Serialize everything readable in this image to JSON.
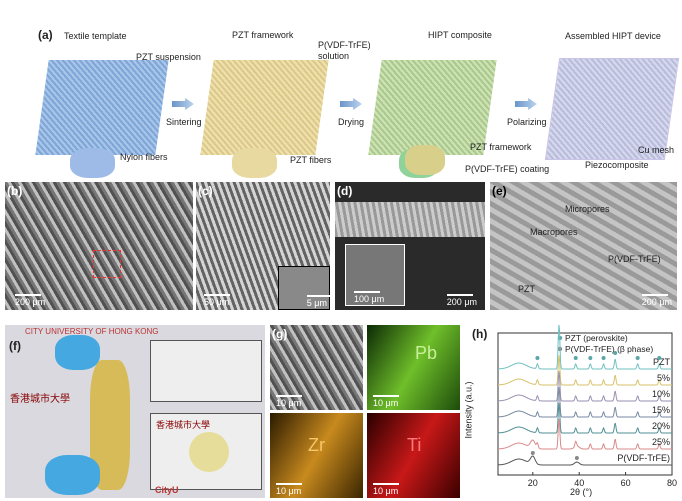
{
  "panel_a": {
    "label": "(a)",
    "steps": [
      "Textile template",
      "PZT framework",
      "HIPT composite",
      "Assembled HIPT device"
    ],
    "annotations": {
      "pzt_suspension": "PZT suspension",
      "pvdf_solution": "P(VDF-TrFE) solution",
      "nylon": "Nylon fibers",
      "pzt_fibers": "PZT fibers",
      "pzt_framework": "PZT framework",
      "coating": "P(VDF-TrFE) coating",
      "cu_mesh": "Cu mesh",
      "piezo": "Piezocomposite"
    },
    "arrows": [
      "Sintering",
      "Drying",
      "Polarizing"
    ]
  },
  "panel_b": {
    "label": "(b)",
    "scale": "200 μm"
  },
  "panel_c": {
    "label": "(c)",
    "scale": "50 μm",
    "inset_scale": "5 μm"
  },
  "panel_d": {
    "label": "(d)",
    "scale": "200 μm",
    "inset_scale": "100 μm"
  },
  "panel_e": {
    "label": "(e)",
    "scale": "200 μm",
    "micropores": "Micropores",
    "macropores": "Macropores",
    "pvdf": "P(VDF-TrFE)",
    "pzt": "PZT"
  },
  "panel_f": {
    "label": "(f)",
    "banner": "CITY UNIVERSITY OF HONG KONG",
    "cn": "香港城市大學",
    "logo": "CityU"
  },
  "panel_g": {
    "label": "(g)",
    "scale": "10 μm",
    "maps": [
      "Pb",
      "Zr",
      "Ti"
    ]
  },
  "chart_data": {
    "type": "line",
    "label": "(h)",
    "xlabel": "2θ (°)",
    "ylabel": "Intensity (a.u.)",
    "xlim": [
      5,
      80
    ],
    "xticks": [
      20,
      40,
      60,
      80
    ],
    "legend": [
      "PZT (perovskite)",
      "P(VDF-TrFE) (β phase)"
    ],
    "legend_colors": [
      "#5aa5a8",
      "#888888"
    ],
    "pzt_peaks": [
      22,
      31.3,
      38.5,
      44.8,
      50.5,
      55.5,
      65.2,
      74.5
    ],
    "pvdf_peaks": [
      20,
      39
    ],
    "series": [
      {
        "name": "PZT",
        "color": "#6fc0c0"
      },
      {
        "name": "5%",
        "color": "#d7c26a"
      },
      {
        "name": "10%",
        "color": "#9a8fb0"
      },
      {
        "name": "15%",
        "color": "#7789a0"
      },
      {
        "name": "20%",
        "color": "#4f8f95"
      },
      {
        "name": "25%",
        "color": "#d98a8a"
      },
      {
        "name": "P(VDF-TrFE)",
        "color": "#555555"
      }
    ]
  }
}
